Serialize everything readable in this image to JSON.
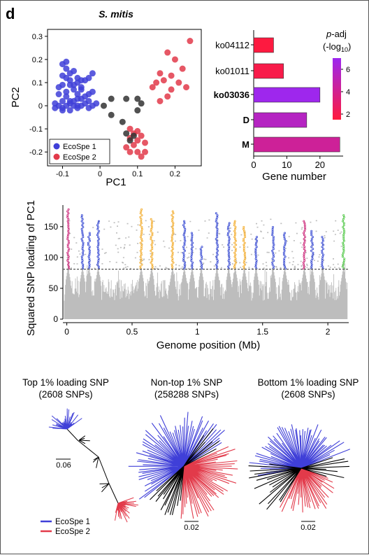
{
  "panel_label": "d",
  "colors": {
    "ecospe1": "#3f3fd8",
    "ecospe2": "#e23a4a",
    "neutral": "#333333",
    "background_snp": "#bdbdbd",
    "highlight_orange": "#f2a51a",
    "highlight_blue": "#2b3fd0",
    "highlight_green": "#45c43a",
    "highlight_magenta": "#c81870",
    "threshold": "#555555"
  },
  "chart_data": [
    {
      "type": "scatter",
      "title": "S. mitis",
      "xlabel": "PC1",
      "ylabel": "PC2",
      "xlim": [
        -0.14,
        0.27
      ],
      "ylim": [
        -0.26,
        0.33
      ],
      "xticks": [
        "-0.1",
        "0",
        "0.1",
        "0.2"
      ],
      "xtick_values": [
        -0.1,
        0,
        0.1,
        0.2
      ],
      "yticks": [
        "0.3",
        "0.2",
        "0.1",
        "0",
        "-0.1",
        "-0.2"
      ],
      "ytick_values": [
        0.3,
        0.2,
        0.1,
        0,
        -0.1,
        -0.2
      ],
      "legend_position": "bottom-left",
      "series": [
        {
          "name": "EcoSpe 1",
          "color_key": "ecospe1",
          "points": [
            [
              -0.1,
              0.18
            ],
            [
              -0.09,
              0.16
            ],
            [
              -0.08,
              0.14
            ],
            [
              -0.07,
              0.15
            ],
            [
              -0.09,
              0.12
            ],
            [
              -0.08,
              0.11
            ],
            [
              -0.06,
              0.12
            ],
            [
              -0.1,
              0.09
            ],
            [
              -0.08,
              0.09
            ],
            [
              -0.06,
              0.1
            ],
            [
              -0.05,
              0.11
            ],
            [
              -0.07,
              0.07
            ],
            [
              -0.09,
              0.06
            ],
            [
              -0.11,
              0.05
            ],
            [
              -0.05,
              0.08
            ],
            [
              -0.04,
              0.11
            ],
            [
              -0.03,
              0.12
            ],
            [
              -0.02,
              0.06
            ],
            [
              -0.06,
              0.05
            ],
            [
              -0.1,
              0.02
            ],
            [
              -0.08,
              0.02
            ],
            [
              -0.07,
              0.02
            ],
            [
              -0.05,
              0.03
            ],
            [
              -0.03,
              0.02
            ],
            [
              -0.12,
              0.01
            ],
            [
              -0.11,
              0.0
            ],
            [
              -0.1,
              -0.01
            ],
            [
              -0.09,
              0.0
            ],
            [
              -0.08,
              0.01
            ],
            [
              -0.07,
              0.0
            ],
            [
              -0.06,
              0.0
            ],
            [
              -0.05,
              0.0
            ],
            [
              -0.04,
              0.01
            ],
            [
              -0.03,
              -0.01
            ],
            [
              -0.02,
              0.0
            ],
            [
              -0.01,
              0.01
            ],
            [
              -0.12,
              -0.01
            ],
            [
              -0.1,
              -0.02
            ],
            [
              -0.08,
              -0.02
            ],
            [
              -0.06,
              -0.01
            ],
            [
              -0.09,
              0.04
            ],
            [
              -0.04,
              0.04
            ],
            [
              -0.11,
              0.08
            ],
            [
              -0.02,
              0.14
            ],
            [
              -0.09,
              0.19
            ],
            [
              -0.07,
              0.09
            ],
            [
              -0.1,
              0.13
            ],
            [
              -0.05,
              0.07
            ],
            [
              -0.03,
              0.05
            ],
            [
              -0.06,
              0.03
            ]
          ]
        },
        {
          "name": "EcoSpe 2",
          "color_key": "ecospe2",
          "points": [
            [
              0.24,
              0.28
            ],
            [
              0.18,
              0.23
            ],
            [
              0.2,
              0.2
            ],
            [
              0.22,
              0.16
            ],
            [
              0.16,
              0.14
            ],
            [
              0.19,
              0.13
            ],
            [
              0.17,
              0.11
            ],
            [
              0.15,
              0.1
            ],
            [
              0.21,
              0.1
            ],
            [
              0.14,
              0.08
            ],
            [
              0.19,
              0.07
            ],
            [
              0.23,
              0.08
            ],
            [
              0.18,
              0.04
            ],
            [
              0.16,
              0.02
            ],
            [
              0.08,
              -0.1
            ],
            [
              0.09,
              -0.12
            ],
            [
              0.1,
              -0.11
            ],
            [
              0.11,
              -0.13
            ],
            [
              0.08,
              -0.14
            ],
            [
              0.1,
              -0.15
            ],
            [
              0.09,
              -0.17
            ],
            [
              0.12,
              -0.16
            ],
            [
              0.07,
              -0.18
            ],
            [
              0.1,
              -0.2
            ],
            [
              0.11,
              -0.22
            ],
            [
              0.08,
              -0.2
            ],
            [
              0.12,
              -0.2
            ]
          ]
        },
        {
          "name": "",
          "color_key": "neutral",
          "points": [
            [
              0.01,
              0.0
            ],
            [
              0.03,
              0.03
            ],
            [
              0.03,
              -0.04
            ],
            [
              0.07,
              0.03
            ],
            [
              0.1,
              0.03
            ],
            [
              0.11,
              0.01
            ],
            [
              0.1,
              -0.02
            ],
            [
              0.06,
              -0.07
            ],
            [
              0.07,
              -0.12
            ],
            [
              0.09,
              -0.13
            ],
            [
              0.08,
              -0.15
            ]
          ]
        }
      ]
    },
    {
      "type": "bar",
      "orientation": "horizontal",
      "xlabel": "Gene number",
      "xlim": [
        0,
        27
      ],
      "xticks": [
        "0",
        "10",
        "20"
      ],
      "xtick_values": [
        0,
        10,
        20
      ],
      "categories": [
        "ko04112",
        "ko01011",
        "ko03036",
        "D",
        "M"
      ],
      "bold_categories": [
        "ko03036",
        "D",
        "M"
      ],
      "values": [
        6,
        9,
        20,
        16,
        26
      ],
      "neglog10_padj": [
        1.6,
        1.9,
        6.9,
        5.6,
        4.3
      ],
      "legend_title_italic": "p",
      "legend_title_rest": "-adj",
      "legend_subtitle_prefix": "(-log",
      "legend_subtitle_sub": "10",
      "legend_subtitle_suffix": ")",
      "colorbar_ticks": [
        "6",
        "4",
        "2"
      ],
      "colorbar_tick_values": [
        6,
        4,
        2
      ],
      "colorbar_range": [
        1.5,
        7.0
      ],
      "colorbar_colors": [
        "#ff1a3d",
        "#9c27f0"
      ]
    },
    {
      "type": "scatter",
      "subtype": "manhattan",
      "xlabel": "Genome position (Mb)",
      "ylabel": "Squared SNP loading of PC1",
      "xlim": [
        -0.03,
        2.16
      ],
      "ylim": [
        0,
        185
      ],
      "xticks": [
        "0",
        "0.5",
        "1",
        "1.5",
        "2"
      ],
      "xtick_values": [
        0,
        0.5,
        1,
        1.5,
        2
      ],
      "yticks": [
        "0",
        "50",
        "100",
        "150"
      ],
      "ytick_values": [
        0,
        50,
        100,
        150
      ],
      "threshold": 81,
      "peaks": [
        {
          "position": 0.01,
          "height": 178,
          "color_key": "highlight_magenta"
        },
        {
          "position": 0.12,
          "height": 170,
          "color_key": "highlight_blue"
        },
        {
          "position": 0.17,
          "height": 140,
          "color_key": "highlight_blue"
        },
        {
          "position": 0.24,
          "height": 160,
          "color_key": "highlight_blue"
        },
        {
          "position": 0.57,
          "height": 180,
          "color_key": "highlight_orange"
        },
        {
          "position": 0.65,
          "height": 165,
          "color_key": "highlight_orange"
        },
        {
          "position": 0.81,
          "height": 175,
          "color_key": "highlight_orange"
        },
        {
          "position": 0.9,
          "height": 160,
          "color_key": "highlight_blue"
        },
        {
          "position": 0.96,
          "height": 140,
          "color_key": "highlight_blue"
        },
        {
          "position": 1.03,
          "height": 120,
          "color_key": "highlight_blue"
        },
        {
          "position": 1.15,
          "height": 172,
          "color_key": "highlight_blue"
        },
        {
          "position": 1.24,
          "height": 158,
          "color_key": "highlight_blue"
        },
        {
          "position": 1.29,
          "height": 160,
          "color_key": "highlight_orange"
        },
        {
          "position": 1.36,
          "height": 150,
          "color_key": "highlight_orange"
        },
        {
          "position": 1.45,
          "height": 135,
          "color_key": "highlight_blue"
        },
        {
          "position": 1.58,
          "height": 150,
          "color_key": "highlight_blue"
        },
        {
          "position": 1.67,
          "height": 142,
          "color_key": "highlight_blue"
        },
        {
          "position": 1.82,
          "height": 160,
          "color_key": "highlight_magenta"
        },
        {
          "position": 1.88,
          "height": 145,
          "color_key": "highlight_blue"
        },
        {
          "position": 1.96,
          "height": 135,
          "color_key": "highlight_blue"
        },
        {
          "position": 2.12,
          "height": 170,
          "color_key": "highlight_green"
        }
      ]
    },
    {
      "type": "tree",
      "trees": [
        {
          "title": "Top 1% loading SNP",
          "subtitle": "(2608 SNPs)",
          "scale_label": "0.06"
        },
        {
          "title": "Non-top 1% SNP",
          "subtitle": "(258288 SNPs)",
          "scale_label": "0.02"
        },
        {
          "title": "Bottom 1% loading SNP",
          "subtitle": "(2608 SNPs)",
          "scale_label": "0.02"
        }
      ],
      "legend": [
        {
          "name": "EcoSpe 1",
          "color_key": "ecospe1"
        },
        {
          "name": "EcoSpe 2",
          "color_key": "ecospe2"
        }
      ]
    }
  ]
}
